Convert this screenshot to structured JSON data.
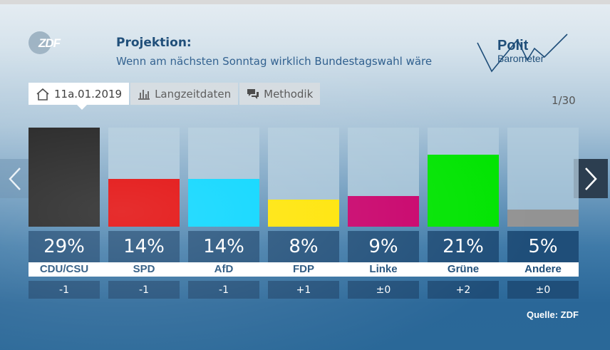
{
  "header": {
    "logo_text": "ZDF",
    "title": "Projektion:",
    "subtitle": "Wenn am nächsten Sonntag wirklich Bundestagswahl wäre",
    "brand_line1": "Polit",
    "brand_line2": "Barometer"
  },
  "tabs": [
    {
      "label": "11a.01.2019",
      "icon": "home-icon",
      "active": true
    },
    {
      "label": "Langzeitdaten",
      "icon": "bar-chart-icon",
      "active": false
    },
    {
      "label": "Methodik",
      "icon": "speech-bubbles-icon",
      "active": false
    }
  ],
  "pager": "1/30",
  "navigation": {
    "prev_icon": "chevron-left-icon",
    "next_icon": "chevron-right-icon"
  },
  "chart_data": {
    "type": "bar",
    "categories": [
      "CDU/CSU",
      "SPD",
      "AfD",
      "FDP",
      "Linke",
      "Grüne",
      "Andere"
    ],
    "values": [
      29,
      14,
      14,
      8,
      9,
      21,
      5
    ],
    "value_labels": [
      "29%",
      "14%",
      "14%",
      "8%",
      "9%",
      "21%",
      "5%"
    ],
    "changes": [
      "-1",
      "-1",
      "-1",
      "+1",
      "±0",
      "+2",
      "±0"
    ],
    "colors": [
      "#1c1c1c",
      "#e10000",
      "#00d5ff",
      "#ffe400",
      "#c8006a",
      "#00e400",
      "#939393"
    ],
    "ylim": [
      0,
      29
    ]
  },
  "source": "Quelle: ZDF"
}
